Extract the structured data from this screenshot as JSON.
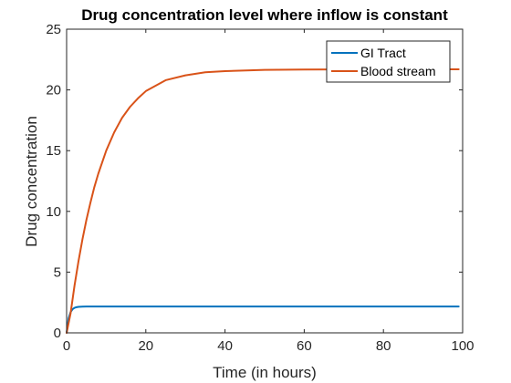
{
  "chart_data": {
    "type": "line",
    "title": "Drug concentration level where inflow is constant",
    "xlabel": "Time (in hours)",
    "ylabel": "Drug concentration",
    "xlim": [
      0,
      100
    ],
    "ylim": [
      0,
      25
    ],
    "xticks": [
      0,
      20,
      40,
      60,
      80,
      100
    ],
    "yticks": [
      0,
      5,
      10,
      15,
      20,
      25
    ],
    "xtick_labels": [
      "0",
      "20",
      "40",
      "60",
      "80",
      "100"
    ],
    "ytick_labels": [
      "0",
      "5",
      "10",
      "15",
      "20",
      "25"
    ],
    "grid": false,
    "legend_position": "top-right",
    "series": [
      {
        "name": "GI Tract",
        "color": "#0072BD",
        "x": [
          0,
          0.5,
          1,
          1.5,
          2,
          2.5,
          3,
          4,
          5,
          6,
          8,
          10,
          20,
          40,
          60,
          80,
          99
        ],
        "y": [
          0,
          1.2,
          1.7,
          1.95,
          2.06,
          2.11,
          2.14,
          2.16,
          2.17,
          2.17,
          2.17,
          2.17,
          2.17,
          2.17,
          2.17,
          2.17,
          2.17
        ]
      },
      {
        "name": "Blood stream",
        "color": "#D95319",
        "x": [
          0,
          1,
          2,
          3,
          4,
          5,
          6,
          7,
          8,
          10,
          12,
          14,
          16,
          18,
          20,
          25,
          30,
          35,
          40,
          50,
          60,
          70,
          80,
          90,
          99
        ],
        "y": [
          0,
          1.6,
          3.9,
          5.9,
          7.7,
          9.3,
          10.7,
          12.0,
          13.1,
          15.0,
          16.5,
          17.7,
          18.6,
          19.3,
          19.9,
          20.8,
          21.2,
          21.45,
          21.55,
          21.65,
          21.68,
          21.69,
          21.7,
          21.7,
          21.7
        ]
      }
    ]
  }
}
